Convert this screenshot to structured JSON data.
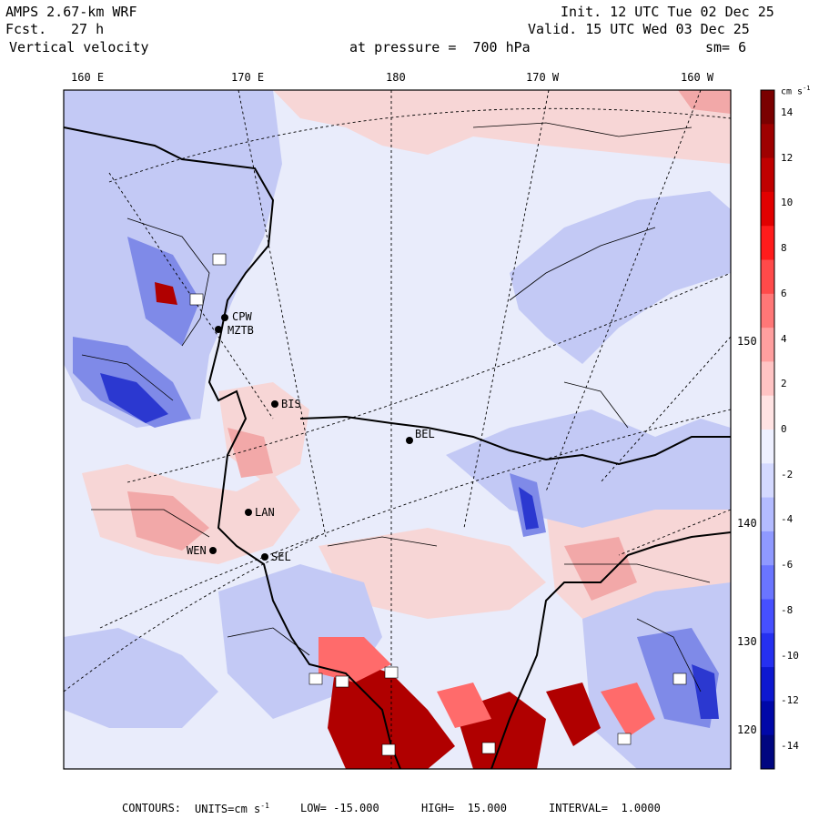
{
  "header": {
    "model": "AMPS 2.67-km WRF",
    "fcst_label": "Fcst.",
    "fcst_value": "27 h",
    "field": "Vertical velocity",
    "init": "Init. 12 UTC Tue 02 Dec 25",
    "valid": "Valid. 15 UTC Wed 03 Dec 25",
    "pressure": "at pressure =  700 hPa",
    "smoothing": "sm= 6"
  },
  "top_longitudes": [
    "160 E",
    "170 E",
    "180",
    "170 W",
    "160 W"
  ],
  "right_longitudes": [
    "150 W",
    "140 W",
    "130 W",
    "120 W"
  ],
  "stations": [
    "CPW",
    "MZTB",
    "BIS",
    "LAN",
    "WEN",
    "SEL",
    "BEL"
  ],
  "colorbar": {
    "units": "cm s",
    "units_exp": "-1",
    "labels": [
      "14",
      "12",
      "10",
      "8",
      "6",
      "4",
      "2",
      "0",
      "-2",
      "-4",
      "-6",
      "-8",
      "-10",
      "-12",
      "-14"
    ],
    "min": -15,
    "max": 15,
    "colors": [
      "#7a0000",
      "#9e0000",
      "#c00000",
      "#e10000",
      "#ff1c1c",
      "#ff4a4a",
      "#ff7777",
      "#ff9f9f",
      "#ffc4c4",
      "#ffe3e3",
      "#eef0ff",
      "#d4d9ff",
      "#b3bbff",
      "#8f99ff",
      "#6a75ff",
      "#4650ff",
      "#2530f0",
      "#0d18d0",
      "#0008a8",
      "#000680"
    ]
  },
  "footer": {
    "contours": "CONTOURS:",
    "units_label": "UNITS=cm s",
    "units_exp": "-1",
    "low": "LOW= -15.000",
    "high": "HIGH=  15.000",
    "interval": "INTERVAL=  1.0000"
  },
  "colors": {
    "land_bg": "#e9ecfb",
    "positive": "#f7c9c9",
    "negative": "#b9c0f3"
  }
}
